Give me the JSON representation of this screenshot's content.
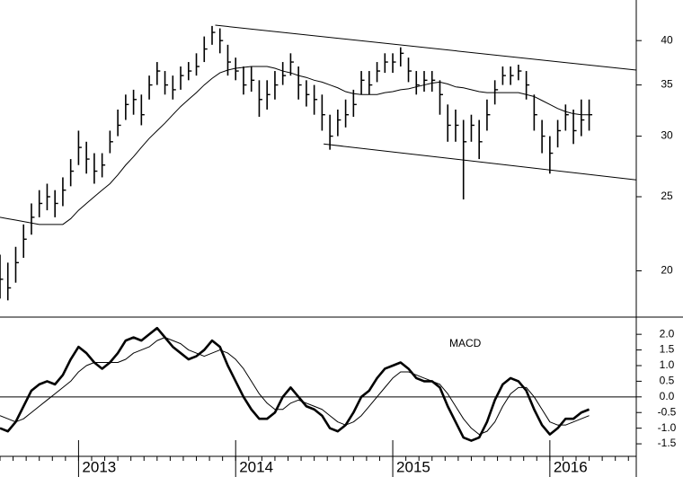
{
  "chart_data": [
    {
      "type": "ohlc",
      "x": [
        2012.5,
        2012.55,
        2012.6,
        2012.65,
        2012.7,
        2012.75,
        2012.8,
        2012.85,
        2012.9,
        2012.95,
        2013.0,
        2013.05,
        2013.1,
        2013.15,
        2013.2,
        2013.25,
        2013.3,
        2013.35,
        2013.4,
        2013.45,
        2013.5,
        2013.55,
        2013.6,
        2013.65,
        2013.7,
        2013.75,
        2013.8,
        2013.85,
        2013.9,
        2013.95,
        2014.0,
        2014.05,
        2014.1,
        2014.15,
        2014.2,
        2014.25,
        2014.3,
        2014.35,
        2014.4,
        2014.45,
        2014.5,
        2014.55,
        2014.6,
        2014.65,
        2014.7,
        2014.75,
        2014.8,
        2014.85,
        2014.9,
        2014.95,
        2015.0,
        2015.05,
        2015.1,
        2015.15,
        2015.2,
        2015.25,
        2015.3,
        2015.35,
        2015.4,
        2015.45,
        2015.5,
        2015.55,
        2015.6,
        2015.65,
        2015.7,
        2015.75,
        2015.8,
        2015.85,
        2015.9,
        2015.95,
        2016.0,
        2016.05,
        2016.1,
        2016.15,
        2016.2,
        2016.25
      ],
      "high": [
        21,
        20.5,
        21.5,
        23,
        24.5,
        25.5,
        26,
        25.5,
        26.5,
        28,
        30.5,
        29.5,
        28.5,
        28.5,
        30.5,
        32.5,
        34,
        34.5,
        34,
        36,
        37.5,
        36.5,
        36,
        37,
        37.5,
        38.5,
        40.5,
        41.8,
        41.5,
        39.5,
        38,
        37,
        37,
        35.5,
        35.5,
        36.5,
        37.5,
        38.5,
        37,
        35.5,
        35,
        34,
        32,
        32.5,
        33.5,
        34.5,
        36.5,
        36.5,
        37.5,
        38.5,
        38.5,
        39.2,
        38,
        36.5,
        36.5,
        36.5,
        35.5,
        33,
        32.5,
        31.5,
        32,
        31.5,
        33.5,
        35.5,
        37,
        37,
        37.2,
        36.5,
        34,
        31.5,
        30,
        31.5,
        33,
        32.5,
        33.5,
        33.5
      ],
      "low": [
        18.4,
        18.3,
        19.3,
        20.8,
        22.3,
        23.5,
        24,
        23.5,
        24.3,
        25.8,
        27.5,
        26.8,
        26,
        26.5,
        28.5,
        30,
        31.5,
        32,
        31,
        33.5,
        35,
        34,
        33.5,
        34.5,
        35.5,
        36,
        37.5,
        39.5,
        38.5,
        36,
        35.5,
        34,
        34.3,
        31.8,
        32.5,
        33.5,
        35,
        36,
        33.5,
        32.8,
        32,
        30.5,
        28.8,
        30,
        30.8,
        31.8,
        34,
        34,
        35.3,
        36.3,
        36.3,
        37,
        35.3,
        34,
        34.3,
        34.3,
        32,
        29.5,
        29.5,
        24.8,
        29.5,
        28,
        30.5,
        33,
        35,
        35,
        35.5,
        33.5,
        30.5,
        28.5,
        26.8,
        29,
        30.5,
        29.3,
        30,
        30.5
      ],
      "close": [
        19.5,
        19,
        20.5,
        22,
        23.5,
        24.5,
        25,
        24.5,
        25.5,
        27,
        29,
        28,
        27,
        27.5,
        29.5,
        31,
        33,
        33.5,
        32,
        35,
        36.5,
        35,
        34.5,
        36,
        36.5,
        37,
        39,
        41,
        40,
        37.5,
        36.5,
        35,
        35.5,
        33.5,
        34,
        35,
        36,
        37.5,
        35,
        34,
        33.5,
        32,
        30,
        31.5,
        32,
        33,
        35.5,
        35,
        36.5,
        37.5,
        37.5,
        38.5,
        36.5,
        35,
        35.5,
        35.5,
        34,
        31,
        31,
        29.5,
        31,
        29.5,
        32,
        34.5,
        36,
        36,
        36.5,
        35,
        32,
        30,
        28.5,
        30.5,
        32,
        30.5,
        31.5,
        32
      ],
      "moving_average": [
        23.5,
        23.4,
        23.3,
        23.2,
        23.1,
        23,
        23,
        23,
        23,
        23.4,
        24,
        24.5,
        25,
        25.5,
        26,
        26.7,
        27.5,
        28.2,
        29,
        29.8,
        30.5,
        31.2,
        32,
        32.8,
        33.5,
        34.2,
        35,
        35.7,
        36.3,
        36.6,
        36.8,
        36.9,
        37,
        37,
        37,
        36.8,
        36.5,
        36.3,
        36,
        35.8,
        35.5,
        35.3,
        35,
        34.7,
        34.3,
        34.1,
        34,
        34,
        34,
        34.2,
        34.3,
        34.5,
        34.6,
        34.8,
        35,
        35.2,
        35.3,
        35.1,
        34.8,
        34.7,
        34.5,
        34.3,
        34.2,
        34.2,
        34.2,
        34.2,
        34.2,
        34,
        33.8,
        33.4,
        33,
        32.6,
        32.3,
        32.1,
        32,
        32
      ],
      "trendlines": [
        {
          "x": [
            2013.87,
            2016.55
          ],
          "values": [
            41.9,
            36.6
          ]
        },
        {
          "x": [
            2014.56,
            2016.55
          ],
          "values": [
            29.3,
            26.3
          ]
        }
      ],
      "color": "#000000",
      "xlim": [
        2012.5,
        2016.55
      ],
      "ylim": [
        17.4,
        45.2
      ],
      "yticks": [
        20,
        25,
        30,
        35,
        40
      ],
      "log_scale": true
    },
    {
      "type": "line",
      "annotation": "MACD",
      "series": [
        {
          "color": "#000000",
          "line_width": 2.6,
          "values": [
            -1.0,
            -1.1,
            -0.8,
            -0.3,
            0.2,
            0.4,
            0.5,
            0.4,
            0.7,
            1.2,
            1.6,
            1.4,
            1.1,
            0.9,
            1.1,
            1.4,
            1.8,
            1.9,
            1.8,
            2.0,
            2.2,
            1.9,
            1.6,
            1.4,
            1.2,
            1.3,
            1.5,
            1.8,
            1.6,
            1.0,
            0.5,
            0.0,
            -0.4,
            -0.7,
            -0.7,
            -0.5,
            0.0,
            0.3,
            0.0,
            -0.3,
            -0.4,
            -0.6,
            -1.0,
            -1.1,
            -0.9,
            -0.5,
            0.0,
            0.2,
            0.6,
            0.9,
            1.0,
            1.1,
            0.9,
            0.6,
            0.5,
            0.5,
            0.3,
            -0.3,
            -0.8,
            -1.3,
            -1.4,
            -1.3,
            -0.8,
            -0.1,
            0.4,
            0.6,
            0.5,
            0.2,
            -0.4,
            -0.9,
            -1.2,
            -1.0,
            -0.7,
            -0.7,
            -0.5,
            -0.4
          ]
        },
        {
          "color": "#000000",
          "line_width": 1,
          "values": [
            -0.6,
            -0.7,
            -0.8,
            -0.7,
            -0.5,
            -0.3,
            -0.1,
            0.1,
            0.3,
            0.5,
            0.8,
            1.0,
            1.1,
            1.1,
            1.1,
            1.1,
            1.2,
            1.4,
            1.5,
            1.6,
            1.8,
            1.9,
            1.8,
            1.7,
            1.5,
            1.4,
            1.3,
            1.4,
            1.5,
            1.4,
            1.2,
            0.9,
            0.5,
            0.1,
            -0.2,
            -0.4,
            -0.4,
            -0.2,
            -0.1,
            -0.2,
            -0.3,
            -0.4,
            -0.6,
            -0.8,
            -0.9,
            -0.8,
            -0.6,
            -0.3,
            0.0,
            0.3,
            0.6,
            0.8,
            0.8,
            0.7,
            0.6,
            0.5,
            0.4,
            0.1,
            -0.3,
            -0.7,
            -1.0,
            -1.2,
            -1.1,
            -0.8,
            -0.3,
            0.1,
            0.3,
            0.3,
            0.0,
            -0.4,
            -0.8,
            -0.9,
            -0.9,
            -0.8,
            -0.7,
            -0.6
          ]
        }
      ],
      "hline": 0,
      "xlim": [
        2012.5,
        2016.55
      ],
      "xticks": [
        2013,
        2014,
        2015,
        2016
      ],
      "ylim": [
        -1.9,
        2.55
      ],
      "yticks": [
        {
          "value": 2.0,
          "label": "2.0"
        },
        1.5,
        {
          "value": 1.0,
          "label": "1.0"
        },
        0.5,
        {
          "value": 0.0,
          "label": "0.0"
        },
        -0.5,
        {
          "value": -1.0,
          "label": "-1.0"
        },
        -1.5
      ]
    }
  ]
}
